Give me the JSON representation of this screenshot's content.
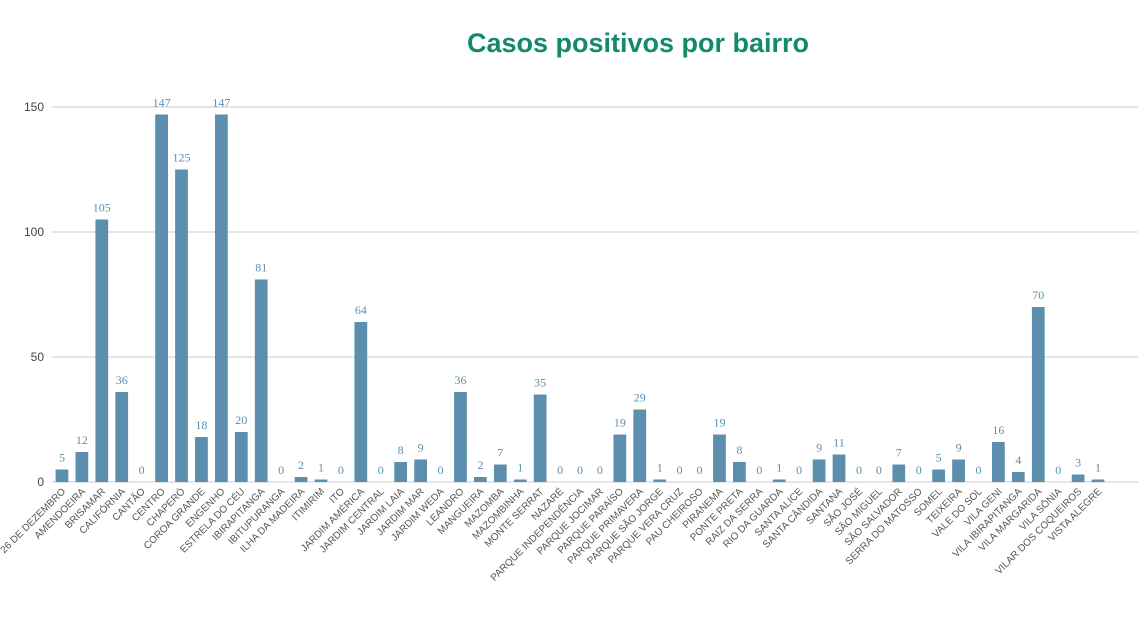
{
  "chart_data": {
    "type": "bar",
    "title": "Casos positivos por bairro",
    "categories": [
      "26 DE DEZEMBRO",
      "AMENDOEIRA",
      "BRISAMAR",
      "CALIFÓRNIA",
      "CANTÃO",
      "CENTRO",
      "CHAPERÓ",
      "COROA GRANDE",
      "ENGENHO",
      "ESTRELA DO CÉU",
      "IBIRAPITANGA",
      "IBITUPURANGA",
      "ILHA DA MADEIRA",
      "ITIMIRIM",
      "ITO",
      "JARDIM AMÉRICA",
      "JARDIM CENTRAL",
      "JARDIM LAIA",
      "JARDIM MAR",
      "JARDIM WEDA",
      "LEANDRO",
      "MANGUEIRA",
      "MAZOMBA",
      "MAZOMBINHA",
      "MONTE SERRAT",
      "NAZARÉ",
      "PARQUE INDEPENDÊNCIA",
      "PARQUE JOCIMAR",
      "PARQUE PARAÍSO",
      "PARQUE PRIMAVERA",
      "PARQUE SÃO JORGE",
      "PARQUE VERA CRUZ",
      "PAU CHEIROSO",
      "PIRANEMA",
      "PONTE PRETA",
      "RAIZ DA SERRA",
      "RIO DA GUARDA",
      "SANTA ALICE",
      "SANTA CÂNDIDA",
      "SANTANA",
      "SÃO JOSÉ",
      "SÃO MIGUEL",
      "SÃO SALVADOR",
      "SERRA DO MATOSSO",
      "SOMEL",
      "TEIXEIRA",
      "VALE DO SOL",
      "VILA GENI",
      "VILA IBIRAPITANGA",
      "VILA MARGARIDA",
      "VILA SÔNIA",
      "VILAR DOS COQUEIROS",
      "VISTA ALEGRE"
    ],
    "values": [
      5,
      12,
      105,
      36,
      0,
      147,
      125,
      18,
      147,
      20,
      81,
      0,
      2,
      1,
      0,
      64,
      0,
      8,
      9,
      0,
      36,
      2,
      7,
      1,
      35,
      0,
      0,
      0,
      19,
      29,
      1,
      0,
      0,
      19,
      8,
      0,
      1,
      0,
      9,
      11,
      0,
      0,
      7,
      0,
      5,
      9,
      0,
      16,
      4,
      70,
      0,
      3,
      1
    ],
    "color": "#5b8fad",
    "ylim": [
      0,
      150
    ],
    "yticks": [
      0,
      50,
      100,
      150
    ],
    "grid": true
  }
}
